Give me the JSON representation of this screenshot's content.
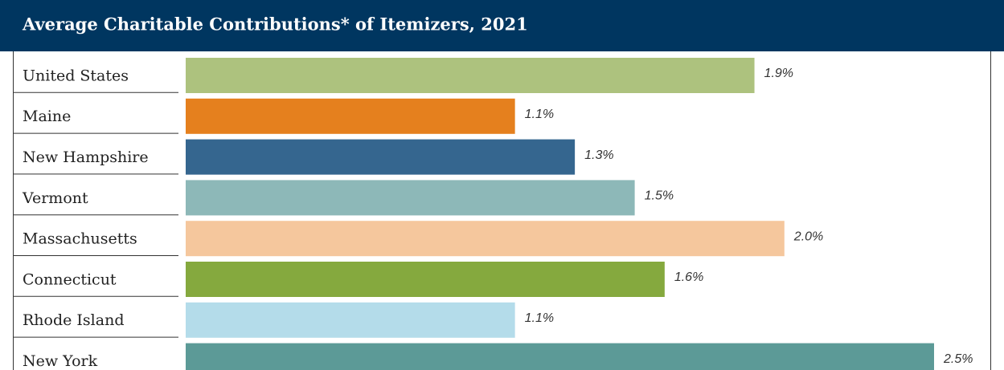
{
  "chart_data": {
    "type": "bar",
    "orientation": "horizontal",
    "title": "Average Charitable Contributions* of Itemizers, 2021",
    "categories": [
      "United States",
      "Maine",
      "New Hampshire",
      "Vermont",
      "Massachusetts",
      "Connecticut",
      "Rhode Island",
      "New York"
    ],
    "values": [
      1.9,
      1.1,
      1.3,
      1.5,
      2.0,
      1.6,
      1.1,
      2.5
    ],
    "value_labels": [
      "1.9%",
      "1.1%",
      "1.3%",
      "1.5%",
      "2.0%",
      "1.6%",
      "1.1%",
      "2.5%"
    ],
    "colors": [
      "#adc27e",
      "#e5801e",
      "#35668f",
      "#8db8b8",
      "#f5c79d",
      "#85a93e",
      "#b4dcea",
      "#5c9a97"
    ]
  }
}
